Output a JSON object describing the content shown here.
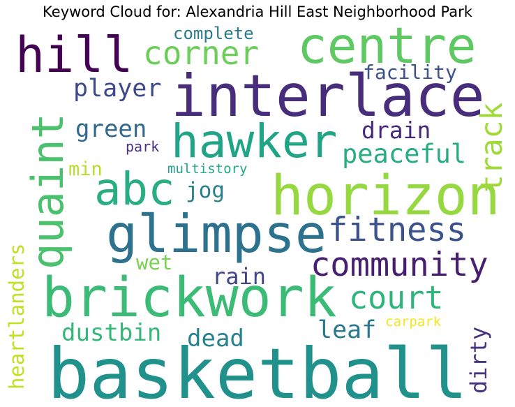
{
  "title": "Keyword Cloud for: Alexandria Hill East Neighborhood Park",
  "chart_data": {
    "type": "wordcloud",
    "title": "Keyword Cloud for: Alexandria Hill East Neighborhood Park",
    "words": [
      {
        "text": "basketball",
        "weight": 1.0,
        "color": "#21918c",
        "rotated": false
      },
      {
        "text": "interlace",
        "weight": 0.85,
        "color": "#472d7b",
        "rotated": false
      },
      {
        "text": "horizon",
        "weight": 0.8,
        "color": "#95d840",
        "rotated": false
      },
      {
        "text": "brickwork",
        "weight": 0.8,
        "color": "#3bbb75",
        "rotated": false
      },
      {
        "text": "glimpse",
        "weight": 0.77,
        "color": "#2c728e",
        "rotated": false
      },
      {
        "text": "centre",
        "weight": 0.73,
        "color": "#5ec962",
        "rotated": false
      },
      {
        "text": "hill",
        "weight": 0.72,
        "color": "#440154",
        "rotated": false
      },
      {
        "text": "hawker",
        "weight": 0.68,
        "color": "#20a486",
        "rotated": false
      },
      {
        "text": "abc",
        "weight": 0.66,
        "color": "#28ae80",
        "rotated": false
      },
      {
        "text": "quaint",
        "weight": 0.63,
        "color": "#4ac16d",
        "rotated": true
      },
      {
        "text": "community",
        "weight": 0.48,
        "color": "#481f70",
        "rotated": false
      },
      {
        "text": "fitness",
        "weight": 0.48,
        "color": "#3b528b",
        "rotated": false
      },
      {
        "text": "corner",
        "weight": 0.47,
        "color": "#6ccd5a",
        "rotated": false
      },
      {
        "text": "court",
        "weight": 0.46,
        "color": "#2fb47c",
        "rotated": false
      },
      {
        "text": "track",
        "weight": 0.44,
        "color": "#a0da39",
        "rotated": true
      },
      {
        "text": "peaceful",
        "weight": 0.38,
        "color": "#27ad81",
        "rotated": false
      },
      {
        "text": "player",
        "weight": 0.36,
        "color": "#3e4989",
        "rotated": false
      },
      {
        "text": "leaf",
        "weight": 0.36,
        "color": "#2a788e",
        "rotated": false
      },
      {
        "text": "green",
        "weight": 0.35,
        "color": "#31688e",
        "rotated": false
      },
      {
        "text": "dustbin",
        "weight": 0.35,
        "color": "#35b779",
        "rotated": false
      },
      {
        "text": "dead",
        "weight": 0.35,
        "color": "#26828e",
        "rotated": false
      },
      {
        "text": "drain",
        "weight": 0.34,
        "color": "#482878",
        "rotated": false
      },
      {
        "text": "rain",
        "weight": 0.33,
        "color": "#414487",
        "rotated": false
      },
      {
        "text": "dirty",
        "weight": 0.33,
        "color": "#46337f",
        "rotated": true
      },
      {
        "text": "jog",
        "weight": 0.32,
        "color": "#277f8e",
        "rotated": false
      },
      {
        "text": "wet",
        "weight": 0.3,
        "color": "#7ad151",
        "rotated": false
      },
      {
        "text": "heartlanders",
        "weight": 0.3,
        "color": "#c2df23",
        "rotated": true
      },
      {
        "text": "facility",
        "weight": 0.29,
        "color": "#3b528b",
        "rotated": false
      },
      {
        "text": "min",
        "weight": 0.28,
        "color": "#b5de2b",
        "rotated": false
      },
      {
        "text": "complete",
        "weight": 0.25,
        "color": "#2a7b8e",
        "rotated": false
      },
      {
        "text": "park",
        "weight": 0.21,
        "color": "#46327e",
        "rotated": false
      },
      {
        "text": "multistory",
        "weight": 0.2,
        "color": "#22a884",
        "rotated": false
      },
      {
        "text": "carpark",
        "weight": 0.2,
        "color": "#f4e61e",
        "rotated": false
      }
    ]
  }
}
